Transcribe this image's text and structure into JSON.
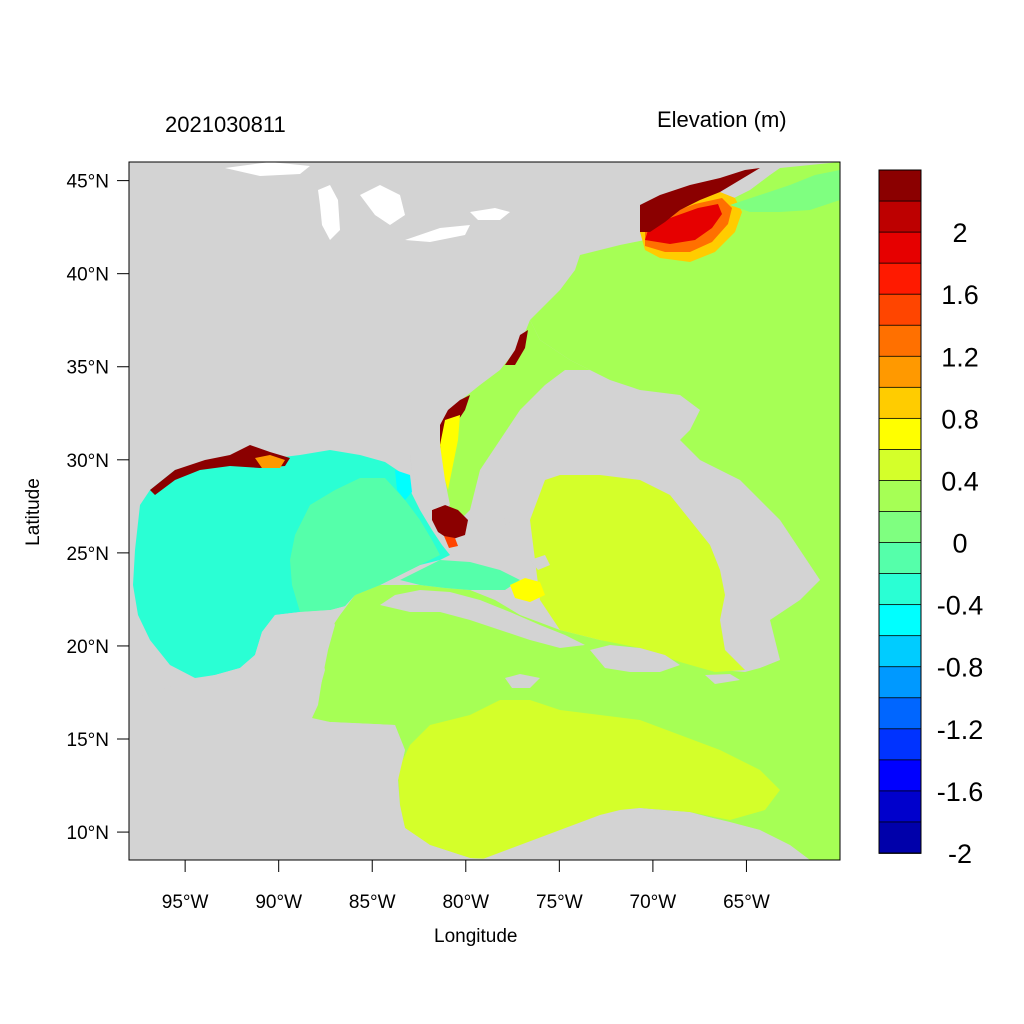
{
  "plot": {
    "left_title": "2021030811",
    "right_title": "Elevation (m)",
    "xlabel": "Longitude",
    "ylabel": "Latitude"
  },
  "map": {
    "lon_range": [
      -98.0,
      -60.0
    ],
    "lat_range": [
      8.5,
      46.0
    ],
    "land_color": "#d3d3d3",
    "xticks": [
      {
        "lon": -95,
        "label": "95°W"
      },
      {
        "lon": -90,
        "label": "90°W"
      },
      {
        "lon": -85,
        "label": "85°W"
      },
      {
        "lon": -80,
        "label": "80°W"
      },
      {
        "lon": -75,
        "label": "75°W"
      },
      {
        "lon": -70,
        "label": "70°W"
      },
      {
        "lon": -65,
        "label": "65°W"
      }
    ],
    "yticks": [
      {
        "lat": 45,
        "label": "45°N"
      },
      {
        "lat": 40,
        "label": "40°N"
      },
      {
        "lat": 35,
        "label": "35°N"
      },
      {
        "lat": 30,
        "label": "30°N"
      },
      {
        "lat": 25,
        "label": "25°N"
      },
      {
        "lat": 20,
        "label": "20°N"
      },
      {
        "lat": 15,
        "label": "15°N"
      },
      {
        "lat": 10,
        "label": "10°N"
      }
    ]
  },
  "colorbar": {
    "colors_top_to_bottom": [
      "#8b0000",
      "#bd0000",
      "#e60000",
      "#ff1a00",
      "#ff4500",
      "#ff7000",
      "#ff9900",
      "#ffcc00",
      "#ffff00",
      "#d4ff2a",
      "#a6ff55",
      "#7fff80",
      "#55ffaa",
      "#2affd4",
      "#00ffff",
      "#00ccff",
      "#0099ff",
      "#0066ff",
      "#0033ff",
      "#0000ff",
      "#0000cc",
      "#0000aa"
    ],
    "labels": [
      {
        "value": 2,
        "text": "2"
      },
      {
        "value": 1.6,
        "text": "1.6"
      },
      {
        "value": 1.2,
        "text": "1.2"
      },
      {
        "value": 0.8,
        "text": "0.8"
      },
      {
        "value": 0.4,
        "text": "0.4"
      },
      {
        "value": 0,
        "text": "0"
      },
      {
        "value": -0.4,
        "text": "-0.4"
      },
      {
        "value": -0.8,
        "text": "-0.8"
      },
      {
        "value": -1.2,
        "text": "-1.2"
      },
      {
        "value": -1.6,
        "text": "-1.6"
      },
      {
        "value": -2,
        "text": "-2"
      }
    ]
  }
}
